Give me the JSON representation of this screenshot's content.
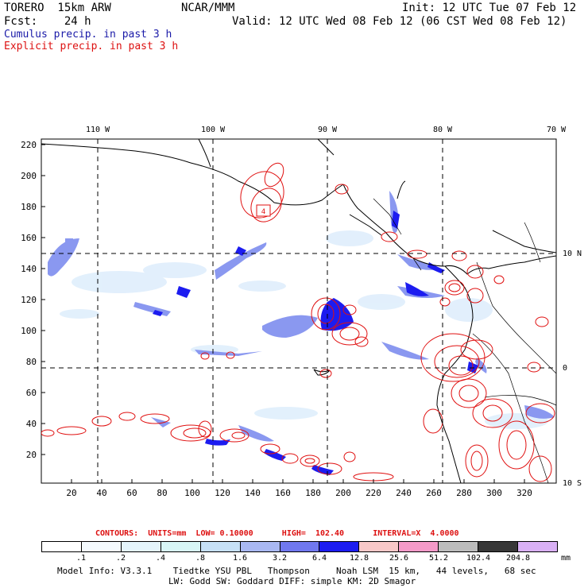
{
  "header": {
    "line1_left": "TORERO  15km ARW",
    "line1_center": "NCAR/MMM",
    "line1_right": "Init: 12 UTC Tue 07 Feb 12",
    "line2_left": "Fcst:    24 h",
    "line2_right": "Valid: 12 UTC Wed 08 Feb 12 (06 CST Wed 08 Feb 12)",
    "cumulus": "Cumulus precip. in past 3 h",
    "explicit": "Explicit precip. in past 3 h"
  },
  "map": {
    "top_lon_labels": [
      "110 W",
      "100 W",
      "90 W",
      "80 W",
      "70 W"
    ],
    "right_lat_labels": [
      "10 N",
      "0",
      "10 S"
    ],
    "y_ticks": [
      "20",
      "40",
      "60",
      "80",
      "100",
      "120",
      "140",
      "160",
      "180",
      "200",
      "220"
    ],
    "x_ticks": [
      "20",
      "40",
      "60",
      "80",
      "100",
      "120",
      "140",
      "160",
      "180",
      "200",
      "220",
      "240",
      "260",
      "280",
      "300",
      "320"
    ],
    "box_label": "4"
  },
  "legend": {
    "contours_text": "CONTOURS:  UNITS=mm  LOW= 0.10000      HIGH=  102.40      INTERVAL=X  4.0000",
    "scale_labels": [
      ".1",
      ".2",
      ".4",
      ".8",
      "1.6",
      "3.2",
      "6.4",
      "12.8",
      "25.6",
      "51.2",
      "102.4",
      "204.8"
    ],
    "unit": "mm",
    "colors": [
      "#ffffff",
      "#f4fafe",
      "#e4f4fb",
      "#d8f6f6",
      "#c6e0f6",
      "#a9b8f2",
      "#7078ef",
      "#1c1cf0",
      "#f8c8c8",
      "#f49ac8",
      "#bcbcbc",
      "#383838",
      "#d9b0f5"
    ]
  },
  "footer": {
    "line1": "Model Info: V3.3.1    Tiedtke YSU PBL   Thompson     Noah LSM  15 km,   44 levels,   68 sec",
    "line2": "LW: Godd SW: Goddard DIFF: simple KM: 2D Smagor"
  }
}
